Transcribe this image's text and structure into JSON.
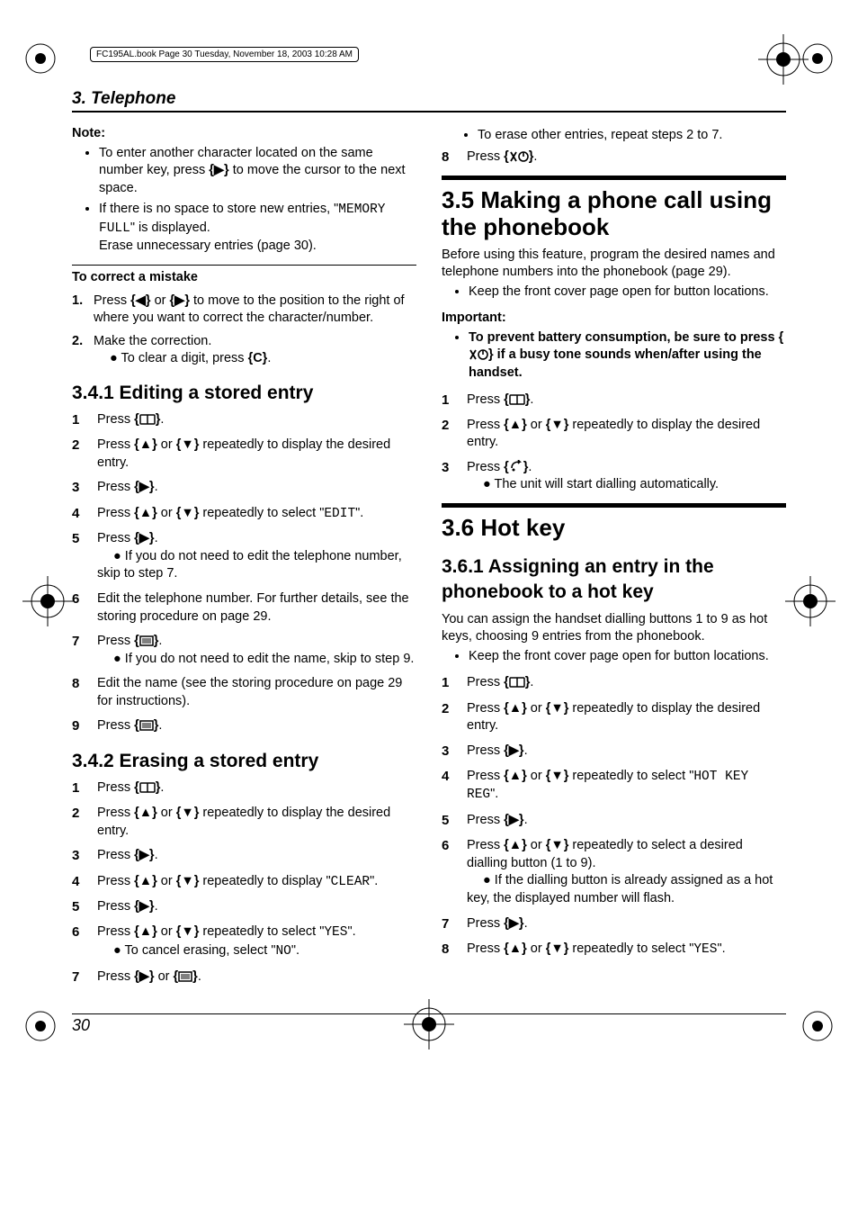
{
  "header_line": "FC195AL.book  Page 30  Tuesday, November 18, 2003  10:28 AM",
  "section_heading": "3. Telephone",
  "page_number": "30",
  "glyphs": {
    "right": "▶",
    "left": "◀",
    "up": "▲",
    "down": "▼",
    "book": "▭",
    "menu": "☰",
    "talk": "↷",
    "off": "✕①"
  },
  "left": {
    "note_head": "Note:",
    "note_bullets": [
      "To enter another character located on the same number key, press {RIGHT} to move the cursor to the next space.",
      "If there is no space to store new entries, \"{MONO:MEMORY FULL}\" is displayed.\nErase unnecessary entries (page 30)."
    ],
    "correct_head": "To correct a mistake",
    "correct_steps": [
      "Press {LEFT} or {RIGHT} to move to the position to the right of where you want to correct the character/number.",
      "Make the correction.\n• To clear a digit, press {C}."
    ],
    "h2_341": "3.4.1 Editing a stored entry",
    "steps_341": [
      "Press {BOOK}.",
      "Press {UP} or {DOWN} repeatedly to display the desired entry.",
      "Press {RIGHT}.",
      "Press {UP} or {DOWN} repeatedly to select \"{MONO:EDIT}\".",
      "Press {RIGHT}.\n• If you do not need to edit the telephone number, skip to step 7.",
      "Edit the telephone number. For further details, see the storing procedure on page 29.",
      "Press {MENU}.\n• If you do not need to edit the name, skip to step 9.",
      "Edit the name (see the storing procedure on page 29 for instructions).",
      "Press {MENU}."
    ],
    "h2_342": "3.4.2 Erasing a stored entry",
    "steps_342": [
      "Press {BOOK}.",
      "Press {UP} or {DOWN} repeatedly to display the desired entry.",
      "Press {RIGHT}.",
      "Press {UP} or {DOWN} repeatedly to display \"{MONO:CLEAR}\".",
      "Press {RIGHT}.",
      "Press {UP} or {DOWN} repeatedly to select \"{MONO:YES}\".\n• To cancel erasing, select \"{MONO:NO}\".",
      "Press {RIGHT} or {MENU}."
    ]
  },
  "right": {
    "top_bullet": "To erase other entries, repeat steps 2 to 7.",
    "step8": "Press {OFF}.",
    "h1_35": "3.5 Making a phone call using the phonebook",
    "para_35": "Before using this feature, program the desired names and telephone numbers into the phonebook (page 29).",
    "bullet_35": "Keep the front cover page open for button locations.",
    "important_head": "Important:",
    "important_bullet": "To prevent battery consumption, be sure to press {OFF} if a busy tone sounds when/after using the handset.",
    "steps_35": [
      "Press {BOOK}.",
      "Press {UP} or {DOWN} repeatedly to display the desired entry.",
      "Press {TALK}.\n• The unit will start dialling automatically."
    ],
    "h1_36": "3.6 Hot key",
    "h2_361": "3.6.1 Assigning an entry in the phonebook to a hot key",
    "para_361": "You can assign the handset dialling buttons 1 to 9 as hot keys, choosing 9 entries from the phonebook.",
    "bullet_361": "Keep the front cover page open for button locations.",
    "steps_361": [
      "Press {BOOK}.",
      "Press {UP} or {DOWN} repeatedly to display the desired entry.",
      "Press {RIGHT}.",
      "Press {UP} or {DOWN} repeatedly to select \"{MONO:HOT KEY REG}\".",
      "Press {RIGHT}.",
      "Press {UP} or {DOWN} repeatedly to select a desired dialling button (1 to 9).\n• If the dialling button is already assigned as a hot key, the displayed number will flash.",
      "Press {RIGHT}.",
      "Press {UP} or {DOWN} repeatedly to select \"{MONO:YES}\"."
    ]
  }
}
